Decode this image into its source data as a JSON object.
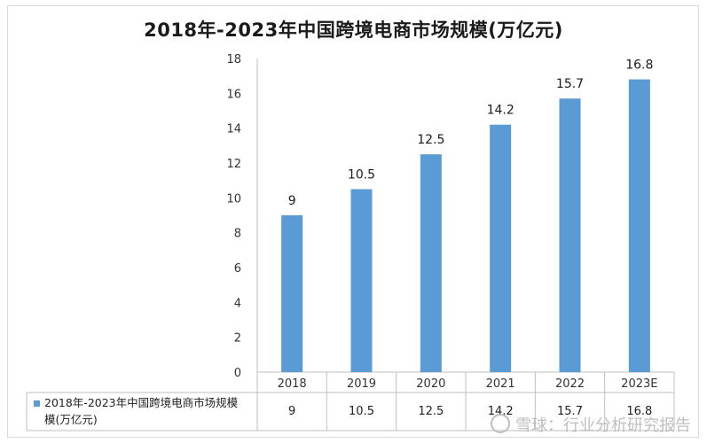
{
  "chart_data": {
    "type": "bar",
    "title": "2018年-2023年中国跨境电商市场规模(万亿元)",
    "categories": [
      "2018",
      "2019",
      "2020",
      "2021",
      "2022",
      "2023E"
    ],
    "series": [
      {
        "name": "2018年-2023年中国跨境电商市场规模(万亿元)",
        "values": [
          9,
          10.5,
          12.5,
          14.2,
          15.7,
          16.8
        ]
      }
    ],
    "data_labels": [
      "9",
      "10.5",
      "12.5",
      "14.2",
      "15.7",
      "16.8"
    ],
    "y_ticks": [
      "0",
      "2",
      "4",
      "6",
      "8",
      "10",
      "12",
      "14",
      "16",
      "18"
    ],
    "ylim": [
      0,
      18
    ],
    "grid": false,
    "legend": "data table below chart",
    "bar_color": "#5b9bd5",
    "legend_line1": "2018年-2023年中国跨境电商市场规模",
    "legend_line2": "模(万亿元)"
  },
  "watermark": {
    "icon": "snowball-icon",
    "text": "雪球：行业分析研究报告"
  }
}
